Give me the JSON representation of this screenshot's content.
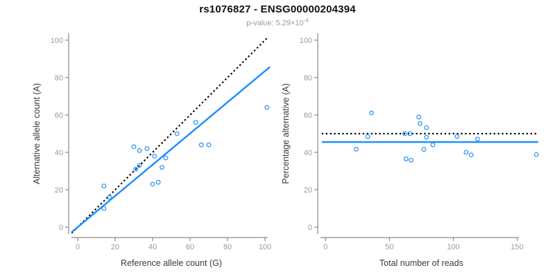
{
  "header": {
    "title": "rs1076827 - ENSG00000204394",
    "pvalue_prefix": "p-value: 5.29×10",
    "pvalue_exponent": "-4"
  },
  "colors": {
    "accent_blue": "#1E90FF",
    "line_black": "#000000",
    "axis_line": "#8a8a8a",
    "tick_label": "#9a9a9a",
    "axis_title": "#3a3a3a",
    "subtitle_gray": "#9a9a9a"
  },
  "chart_data": [
    {
      "type": "scatter",
      "panel": "left",
      "xlabel": "Reference allele count (G)",
      "ylabel": "Alternative allele count (A)",
      "xticks": [
        0,
        20,
        40,
        60,
        80,
        100
      ],
      "yticks": [
        0,
        20,
        40,
        60,
        80,
        100
      ],
      "xlim": [
        0,
        101
      ],
      "ylim": [
        0,
        101
      ],
      "grid": false,
      "legend": "none",
      "marker": "open-circle",
      "points": [
        [
          14,
          22
        ],
        [
          14,
          10
        ],
        [
          17,
          16
        ],
        [
          31,
          31
        ],
        [
          33,
          33
        ],
        [
          30,
          43
        ],
        [
          33,
          41
        ],
        [
          37,
          42
        ],
        [
          41,
          38
        ],
        [
          47,
          37
        ],
        [
          45,
          32
        ],
        [
          40,
          23
        ],
        [
          43,
          24
        ],
        [
          53,
          50
        ],
        [
          63,
          56
        ],
        [
          66,
          44
        ],
        [
          70,
          44
        ],
        [
          101,
          64
        ]
      ],
      "lines": [
        {
          "name": "expected-identity",
          "slope": 1,
          "intercept": 0,
          "style": "dotted",
          "color": "black"
        },
        {
          "name": "fitted-ratio",
          "slope": 0.835,
          "intercept": 0,
          "style": "solid",
          "color": "blue"
        }
      ]
    },
    {
      "type": "scatter",
      "panel": "right",
      "xlabel": "Total number of reads",
      "ylabel": "Percentage alternative (A)",
      "xticks": [
        0,
        50,
        100,
        150
      ],
      "yticks": [
        0,
        20,
        40,
        60,
        80,
        100
      ],
      "xlim": [
        0,
        165
      ],
      "ylim": [
        0,
        100
      ],
      "grid": false,
      "legend": "none",
      "marker": "open-circle",
      "points": [
        [
          36,
          61.1
        ],
        [
          24,
          41.7
        ],
        [
          33,
          48.5
        ],
        [
          62,
          50
        ],
        [
          66,
          50
        ],
        [
          73,
          58.9
        ],
        [
          74,
          55.4
        ],
        [
          79,
          53.2
        ],
        [
          79,
          48.1
        ],
        [
          84,
          44
        ],
        [
          77,
          41.6
        ],
        [
          63,
          36.5
        ],
        [
          67,
          35.8
        ],
        [
          103,
          48.5
        ],
        [
          119,
          47.1
        ],
        [
          110,
          40
        ],
        [
          114,
          38.6
        ],
        [
          165,
          38.8
        ]
      ],
      "lines": [
        {
          "name": "expected-50pct",
          "y": 50,
          "style": "dotted",
          "color": "black"
        },
        {
          "name": "fitted-mean-pct",
          "y": 45.5,
          "style": "solid",
          "color": "blue"
        }
      ]
    }
  ]
}
